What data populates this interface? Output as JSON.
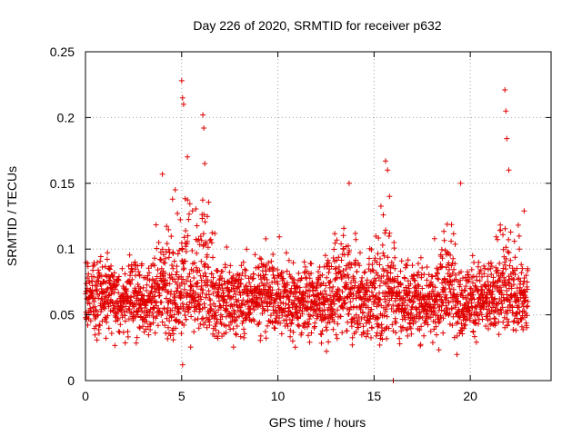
{
  "chart_data": {
    "type": "scatter",
    "title": "Day 226 of 2020, SRMTID for receiver p632",
    "xlabel": "GPS time / hours",
    "ylabel": "SRMTID / TECUs",
    "xlim": [
      0,
      24.2
    ],
    "ylim": [
      0,
      0.25
    ],
    "x_ticks": [
      0,
      5,
      10,
      15,
      20
    ],
    "x_tick_labels": [
      "0",
      "5",
      "10",
      "15",
      "20"
    ],
    "y_ticks": [
      0,
      0.05,
      0.1,
      0.15,
      0.2,
      0.25
    ],
    "y_tick_labels": [
      "0",
      "0.05",
      "0.1",
      "0.15",
      "0.2",
      "0.25"
    ],
    "grid": true,
    "marker": "+",
    "color": "#e00000",
    "series": [
      {
        "name": "SRMTID",
        "x_range": [
          0.0,
          23.0
        ],
        "sample_interval_hours": 0.0083,
        "baseline_mean": 0.062,
        "spread": 0.02,
        "notable_points": [
          {
            "x": 5.0,
            "y": 0.228
          },
          {
            "x": 5.05,
            "y": 0.215
          },
          {
            "x": 5.1,
            "y": 0.21
          },
          {
            "x": 6.1,
            "y": 0.202
          },
          {
            "x": 6.15,
            "y": 0.192
          },
          {
            "x": 6.2,
            "y": 0.165
          },
          {
            "x": 4.0,
            "y": 0.157
          },
          {
            "x": 5.3,
            "y": 0.17
          },
          {
            "x": 13.7,
            "y": 0.15
          },
          {
            "x": 15.6,
            "y": 0.167
          },
          {
            "x": 15.7,
            "y": 0.16
          },
          {
            "x": 15.8,
            "y": 0.14
          },
          {
            "x": 19.5,
            "y": 0.15
          },
          {
            "x": 21.8,
            "y": 0.221
          },
          {
            "x": 21.85,
            "y": 0.205
          },
          {
            "x": 21.9,
            "y": 0.184
          },
          {
            "x": 22.0,
            "y": 0.16
          },
          {
            "x": 22.8,
            "y": 0.129
          },
          {
            "x": 5.05,
            "y": 0.012
          },
          {
            "x": 16.0,
            "y": 0.0
          }
        ],
        "bursts": [
          {
            "center": 4.0,
            "amp": 0.04
          },
          {
            "center": 5.1,
            "amp": 0.07
          },
          {
            "center": 6.1,
            "amp": 0.06
          },
          {
            "center": 9.3,
            "amp": 0.025
          },
          {
            "center": 13.5,
            "amp": 0.035
          },
          {
            "center": 15.6,
            "amp": 0.05
          },
          {
            "center": 18.8,
            "amp": 0.035
          },
          {
            "center": 21.9,
            "amp": 0.05
          }
        ]
      }
    ]
  }
}
